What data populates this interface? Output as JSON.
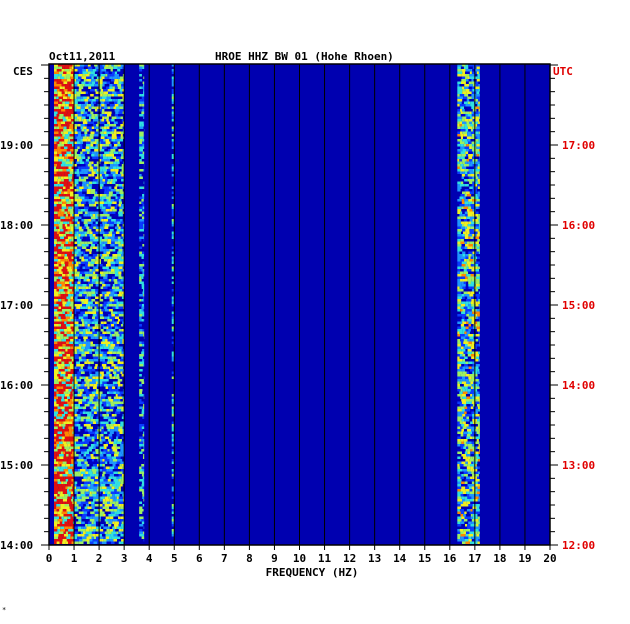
{
  "header": {
    "date": "Oct11,2011",
    "title": "HROE HHZ BW 01 (Hohe Rhoen)",
    "left_zone": "CES",
    "right_zone": "UTC"
  },
  "footnote": "*",
  "chart_data": {
    "type": "heatmap",
    "title": "HROE HHZ BW 01 (Hohe Rhoen)",
    "xlabel": "FREQUENCY (HZ)",
    "xlim": [
      0,
      20
    ],
    "x_ticks": [
      "0",
      "1",
      "2",
      "3",
      "4",
      "5",
      "6",
      "7",
      "8",
      "9",
      "10",
      "11",
      "12",
      "13",
      "14",
      "15",
      "16",
      "17",
      "18",
      "19",
      "20"
    ],
    "left_axis": {
      "label": "CES",
      "ticks": [
        "14:00",
        "15:00",
        "16:00",
        "17:00",
        "18:00",
        "19:00"
      ],
      "range_hours": [
        14.0,
        20.0
      ]
    },
    "right_axis": {
      "label": "UTC",
      "ticks": [
        "12:00",
        "13:00",
        "14:00",
        "15:00",
        "16:00",
        "17:00"
      ],
      "range_hours": [
        12.0,
        18.0
      ]
    },
    "grid": true,
    "colormap": [
      "#00007a",
      "#0000c8",
      "#0a3cff",
      "#1e96ff",
      "#30e0e0",
      "#9cf060",
      "#f0f020",
      "#ff8800",
      "#e01010"
    ],
    "background_color": "#0000b0",
    "features": [
      {
        "band_hz": [
          0.2,
          1.0
        ],
        "intensity": 0.85,
        "description_from_chart": "continuous"
      },
      {
        "band_hz": [
          1.0,
          3.0
        ],
        "intensity": 0.45
      },
      {
        "band_hz": [
          3.6,
          3.8
        ],
        "intensity": 0.35
      },
      {
        "band_hz": [
          4.9,
          5.0
        ],
        "intensity": 0.3
      },
      {
        "band_hz": [
          16.3,
          17.2
        ],
        "intensity": 0.5
      }
    ]
  }
}
